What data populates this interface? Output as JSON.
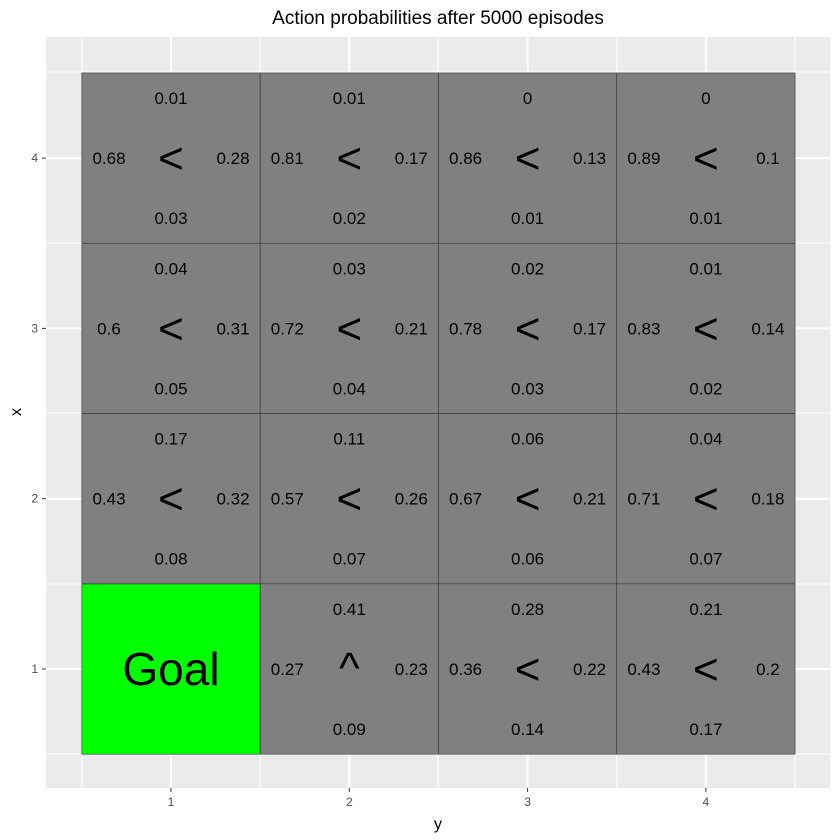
{
  "chart_data": {
    "type": "heatmap",
    "title": "Action probabilities after  5000  episodes",
    "xlabel": "y",
    "ylabel": "x",
    "x_ticks": [
      "1",
      "2",
      "3",
      "4"
    ],
    "y_ticks": [
      "1",
      "2",
      "3",
      "4"
    ],
    "grid": true,
    "colors": {
      "panel_background": "#EBEBEB",
      "grid_line": "#FFFFFF",
      "cell_fill": "#808080",
      "cell_border": "#333333",
      "goal_fill": "#00FF00",
      "tick_text": "#4D4D4D"
    },
    "goal": {
      "y": 1,
      "x": 1,
      "label": "Goal"
    },
    "cells": [
      {
        "y": 1,
        "x": 4,
        "arrow": "<",
        "up": "0.01",
        "left": "0.68",
        "right": "0.28",
        "down": "0.03"
      },
      {
        "y": 2,
        "x": 4,
        "arrow": "<",
        "up": "0.01",
        "left": "0.81",
        "right": "0.17",
        "down": "0.02"
      },
      {
        "y": 3,
        "x": 4,
        "arrow": "<",
        "up": "0",
        "left": "0.86",
        "right": "0.13",
        "down": "0.01"
      },
      {
        "y": 4,
        "x": 4,
        "arrow": "<",
        "up": "0",
        "left": "0.89",
        "right": "0.1",
        "down": "0.01"
      },
      {
        "y": 1,
        "x": 3,
        "arrow": "<",
        "up": "0.04",
        "left": "0.6",
        "right": "0.31",
        "down": "0.05"
      },
      {
        "y": 2,
        "x": 3,
        "arrow": "<",
        "up": "0.03",
        "left": "0.72",
        "right": "0.21",
        "down": "0.04"
      },
      {
        "y": 3,
        "x": 3,
        "arrow": "<",
        "up": "0.02",
        "left": "0.78",
        "right": "0.17",
        "down": "0.03"
      },
      {
        "y": 4,
        "x": 3,
        "arrow": "<",
        "up": "0.01",
        "left": "0.83",
        "right": "0.14",
        "down": "0.02"
      },
      {
        "y": 1,
        "x": 2,
        "arrow": "<",
        "up": "0.17",
        "left": "0.43",
        "right": "0.32",
        "down": "0.08"
      },
      {
        "y": 2,
        "x": 2,
        "arrow": "<",
        "up": "0.11",
        "left": "0.57",
        "right": "0.26",
        "down": "0.07"
      },
      {
        "y": 3,
        "x": 2,
        "arrow": "<",
        "up": "0.06",
        "left": "0.67",
        "right": "0.21",
        "down": "0.06"
      },
      {
        "y": 4,
        "x": 2,
        "arrow": "<",
        "up": "0.04",
        "left": "0.71",
        "right": "0.18",
        "down": "0.07"
      },
      {
        "y": 2,
        "x": 1,
        "arrow": "^",
        "up": "0.41",
        "left": "0.27",
        "right": "0.23",
        "down": "0.09"
      },
      {
        "y": 3,
        "x": 1,
        "arrow": "<",
        "up": "0.28",
        "left": "0.36",
        "right": "0.22",
        "down": "0.14"
      },
      {
        "y": 4,
        "x": 1,
        "arrow": "<",
        "up": "0.21",
        "left": "0.43",
        "right": "0.2",
        "down": "0.17"
      }
    ]
  }
}
